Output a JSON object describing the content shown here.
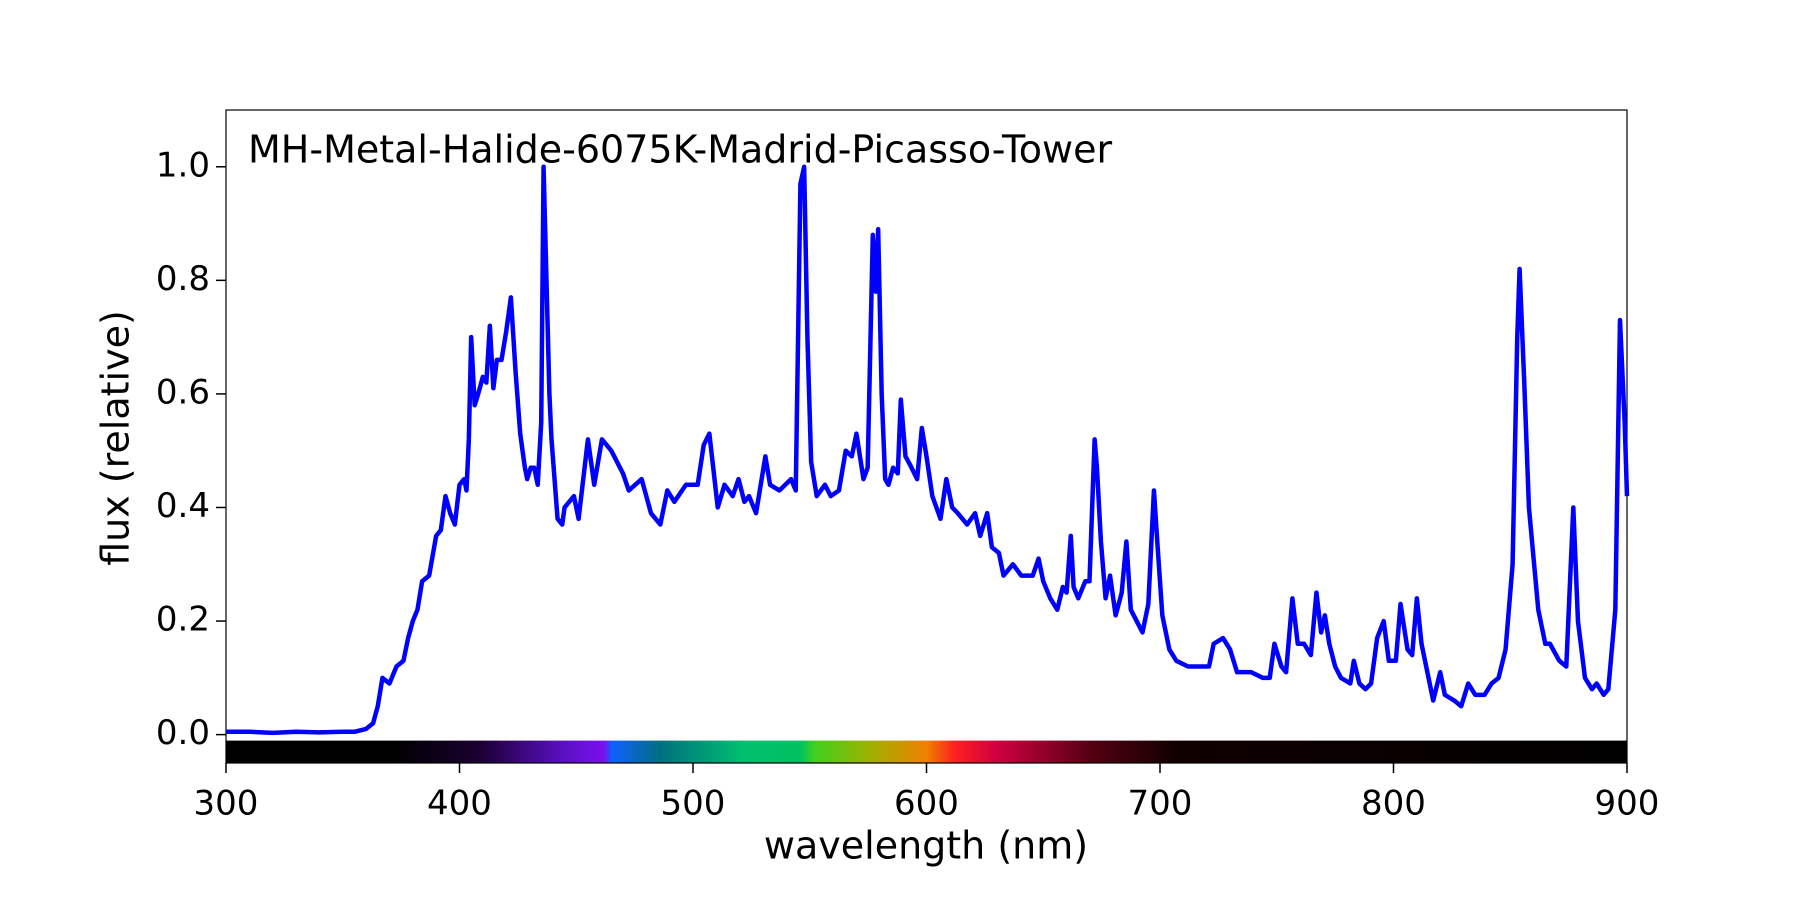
{
  "chart_data": {
    "type": "line",
    "title": "MH-Metal-Halide-6075K-Madrid-Picasso-Tower",
    "x_label": "wavelength (nm)",
    "y_label": "flux (relative)",
    "color": "#0000ff",
    "xlim": [
      300,
      900
    ],
    "ylim": [
      -0.05,
      1.1
    ],
    "xticks": [
      300,
      400,
      500,
      600,
      700,
      800,
      900
    ],
    "yticks": [
      {
        "value": 0,
        "label": "0.0"
      },
      0.2,
      0.4,
      0.6,
      0.8,
      {
        "value": 1,
        "label": "1.0"
      }
    ],
    "x": [
      300,
      310,
      320,
      330,
      340,
      350,
      355,
      360,
      363,
      365,
      367,
      370,
      373,
      376,
      378,
      380,
      382,
      384,
      387,
      390,
      392,
      394,
      396,
      398,
      400,
      402,
      403,
      404,
      405,
      406.5,
      408,
      410,
      411.5,
      413,
      414.5,
      416,
      418,
      420,
      422,
      424,
      426,
      428,
      429,
      430.5,
      432,
      433.5,
      435,
      436,
      438.5,
      439.4,
      442,
      444,
      445,
      449,
      451,
      455,
      457.7,
      461,
      465,
      470,
      472.5,
      478,
      482,
      486,
      489,
      492,
      497,
      502,
      504.6,
      507,
      510.6,
      513.5,
      517,
      519.5,
      522,
      524,
      527,
      531,
      533,
      537,
      542,
      544,
      546,
      547.6,
      549,
      550.6,
      553,
      556.5,
      559,
      562.5,
      565.4,
      568,
      570,
      573,
      574.8,
      577,
      578.3,
      579.3,
      580.8,
      582.3,
      583.7,
      585.7,
      587.7,
      589,
      591,
      593.6,
      596,
      598,
      600,
      602.5,
      606,
      608.5,
      611,
      613.4,
      617.4,
      620.8,
      623,
      626,
      628,
      631,
      633,
      637,
      640.6,
      645.5,
      648,
      650,
      653,
      656,
      658.4,
      660,
      661.8,
      663,
      665,
      668,
      669.8,
      672,
      673,
      674.7,
      676.7,
      678.6,
      681,
      683.6,
      685.6,
      687.5,
      690,
      692.5,
      695,
      697.4,
      699,
      701,
      704,
      707,
      712,
      717,
      721,
      723,
      727,
      730,
      733,
      739,
      744,
      747,
      749,
      752,
      754,
      756.7,
      759,
      761.7,
      764.6,
      767,
      769,
      770.6,
      772.5,
      775,
      777.5,
      781.5,
      783,
      785.4,
      788,
      790.4,
      793,
      795.8,
      798,
      801,
      803,
      806,
      808,
      810,
      812,
      815,
      817,
      820,
      822,
      826,
      829,
      832,
      835,
      839,
      842,
      845,
      848,
      851,
      853,
      854,
      856,
      858,
      862,
      865,
      867,
      871,
      874,
      877,
      879,
      882,
      885,
      887,
      890,
      892,
      895,
      897,
      899,
      900
    ],
    "values": [
      0.005,
      0.005,
      0.003,
      0.005,
      0.004,
      0.005,
      0.005,
      0.01,
      0.02,
      0.05,
      0.1,
      0.09,
      0.12,
      0.13,
      0.17,
      0.2,
      0.22,
      0.27,
      0.28,
      0.35,
      0.36,
      0.42,
      0.39,
      0.37,
      0.44,
      0.45,
      0.43,
      0.52,
      0.7,
      0.58,
      0.6,
      0.63,
      0.62,
      0.72,
      0.61,
      0.66,
      0.66,
      0.71,
      0.77,
      0.64,
      0.53,
      0.47,
      0.45,
      0.47,
      0.47,
      0.44,
      0.55,
      1.0,
      0.6,
      0.52,
      0.38,
      0.37,
      0.4,
      0.42,
      0.38,
      0.52,
      0.44,
      0.52,
      0.5,
      0.46,
      0.43,
      0.45,
      0.39,
      0.37,
      0.43,
      0.41,
      0.44,
      0.44,
      0.51,
      0.53,
      0.4,
      0.44,
      0.42,
      0.45,
      0.41,
      0.42,
      0.39,
      0.49,
      0.44,
      0.43,
      0.45,
      0.43,
      0.97,
      1.0,
      0.7,
      0.48,
      0.42,
      0.44,
      0.42,
      0.43,
      0.5,
      0.49,
      0.53,
      0.45,
      0.47,
      0.88,
      0.78,
      0.89,
      0.6,
      0.45,
      0.44,
      0.47,
      0.46,
      0.59,
      0.49,
      0.47,
      0.45,
      0.54,
      0.49,
      0.42,
      0.38,
      0.45,
      0.4,
      0.39,
      0.37,
      0.39,
      0.35,
      0.39,
      0.33,
      0.32,
      0.28,
      0.3,
      0.28,
      0.28,
      0.31,
      0.27,
      0.24,
      0.22,
      0.26,
      0.25,
      0.35,
      0.26,
      0.24,
      0.27,
      0.27,
      0.52,
      0.47,
      0.34,
      0.24,
      0.28,
      0.21,
      0.25,
      0.34,
      0.22,
      0.2,
      0.18,
      0.23,
      0.43,
      0.33,
      0.21,
      0.15,
      0.13,
      0.12,
      0.12,
      0.12,
      0.16,
      0.17,
      0.15,
      0.11,
      0.11,
      0.1,
      0.1,
      0.16,
      0.12,
      0.11,
      0.24,
      0.16,
      0.16,
      0.14,
      0.25,
      0.18,
      0.21,
      0.16,
      0.12,
      0.1,
      0.09,
      0.13,
      0.09,
      0.08,
      0.09,
      0.17,
      0.2,
      0.13,
      0.13,
      0.23,
      0.15,
      0.14,
      0.24,
      0.16,
      0.1,
      0.06,
      0.11,
      0.07,
      0.06,
      0.05,
      0.09,
      0.07,
      0.07,
      0.09,
      0.1,
      0.15,
      0.3,
      0.7,
      0.82,
      0.62,
      0.4,
      0.22,
      0.16,
      0.16,
      0.13,
      0.12,
      0.4,
      0.2,
      0.1,
      0.08,
      0.09,
      0.07,
      0.08,
      0.22,
      0.73,
      0.55,
      0.42
    ]
  }
}
